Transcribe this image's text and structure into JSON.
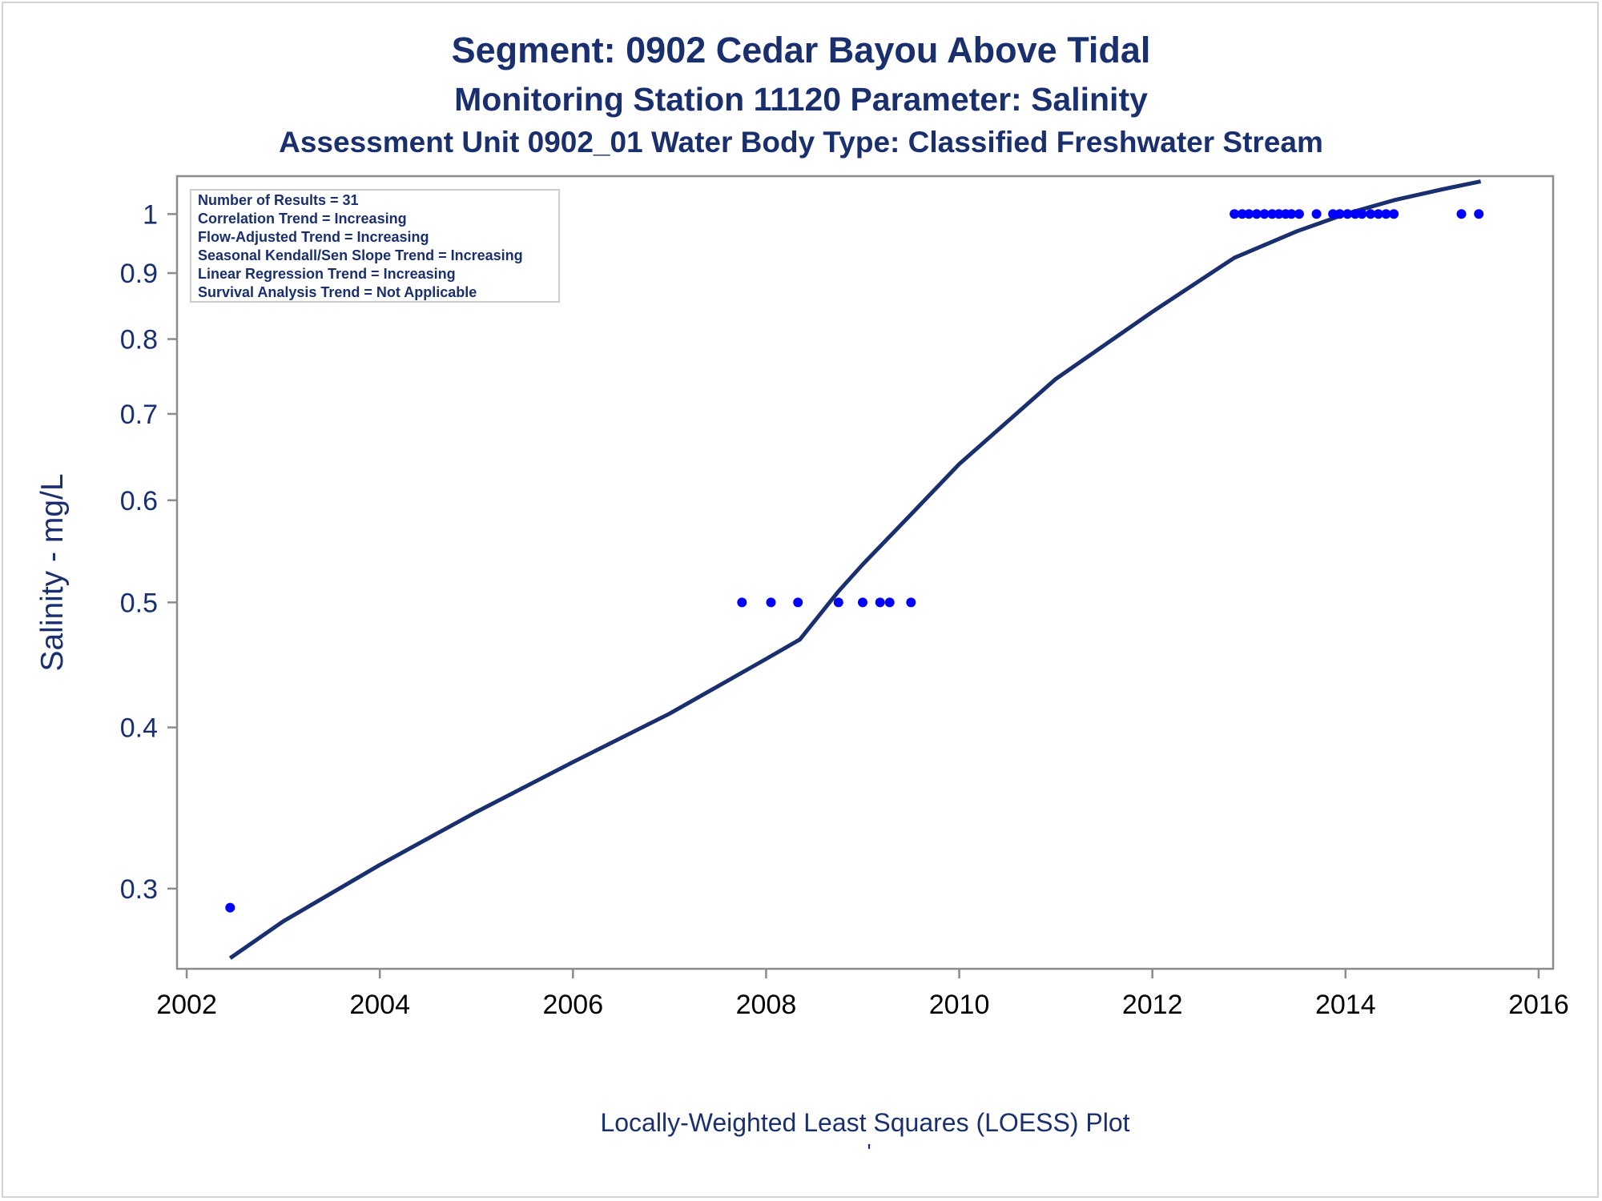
{
  "chart_data": {
    "type": "scatter",
    "title": "Segment: 0902  Cedar Bayou Above Tidal",
    "subtitle": "Monitoring Station 11120 Parameter: Salinity",
    "subtitle2": "Assessment Unit 0902_01   Water Body Type: Classified Freshwater Stream",
    "ylabel": "Salinity - mg/L",
    "footnote": "Locally-Weighted Least Squares (LOESS) Plot",
    "footnote_mark": "'",
    "y_scale": "log",
    "xlim": [
      2001.9,
      2016.15
    ],
    "ylim": [
      0.26,
      1.07
    ],
    "x_ticks": [
      "2002",
      "2004",
      "2006",
      "2008",
      "2010",
      "2012",
      "2014",
      "2016"
    ],
    "y_ticks": [
      "0.3",
      "0.4",
      "0.5",
      "0.6",
      "0.7",
      "0.8",
      "0.9",
      "1"
    ],
    "legend_placement": "top-left",
    "stats": [
      "Number of Results = 31",
      "Correlation Trend = Increasing",
      "Flow-Adjusted Trend = Increasing",
      "Seasonal Kendall/Sen Slope Trend = Increasing",
      "Linear Regression Trend = Increasing",
      "Survival Analysis Trend = Not Applicable"
    ],
    "series": [
      {
        "type": "scatter",
        "color": "#0000ff",
        "points": [
          [
            2002.45,
            0.29
          ],
          [
            2007.75,
            0.5
          ],
          [
            2008.05,
            0.5
          ],
          [
            2008.33,
            0.5
          ],
          [
            2008.75,
            0.5
          ],
          [
            2009.0,
            0.5
          ],
          [
            2009.18,
            0.5
          ],
          [
            2009.28,
            0.5
          ],
          [
            2009.5,
            0.5
          ],
          [
            2012.85,
            1.0
          ],
          [
            2012.93,
            1.0
          ],
          [
            2013.0,
            1.0
          ],
          [
            2013.08,
            1.0
          ],
          [
            2013.16,
            1.0
          ],
          [
            2013.24,
            1.0
          ],
          [
            2013.31,
            1.0
          ],
          [
            2013.38,
            1.0
          ],
          [
            2013.44,
            1.0
          ],
          [
            2013.52,
            1.0
          ],
          [
            2013.7,
            1.0
          ],
          [
            2013.87,
            1.0
          ],
          [
            2013.94,
            1.0
          ],
          [
            2014.02,
            1.0
          ],
          [
            2014.1,
            1.0
          ],
          [
            2014.17,
            1.0
          ],
          [
            2014.26,
            1.0
          ],
          [
            2014.34,
            1.0
          ],
          [
            2014.42,
            1.0
          ],
          [
            2014.5,
            1.0
          ],
          [
            2015.2,
            1.0
          ],
          [
            2015.38,
            1.0
          ]
        ]
      },
      {
        "type": "line",
        "color": "#1a2f6e",
        "points": [
          [
            2002.45,
            0.265
          ],
          [
            2003.0,
            0.283
          ],
          [
            2004.0,
            0.313
          ],
          [
            2005.0,
            0.344
          ],
          [
            2006.0,
            0.376
          ],
          [
            2007.0,
            0.41
          ],
          [
            2008.0,
            0.452
          ],
          [
            2008.35,
            0.468
          ],
          [
            2008.75,
            0.51
          ],
          [
            2009.0,
            0.535
          ],
          [
            2009.5,
            0.585
          ],
          [
            2010.0,
            0.64
          ],
          [
            2011.0,
            0.745
          ],
          [
            2012.0,
            0.84
          ],
          [
            2012.85,
            0.925
          ],
          [
            2013.5,
            0.97
          ],
          [
            2014.0,
            1.0
          ],
          [
            2014.5,
            1.025
          ],
          [
            2015.0,
            1.045
          ],
          [
            2015.4,
            1.06
          ]
        ]
      }
    ]
  }
}
